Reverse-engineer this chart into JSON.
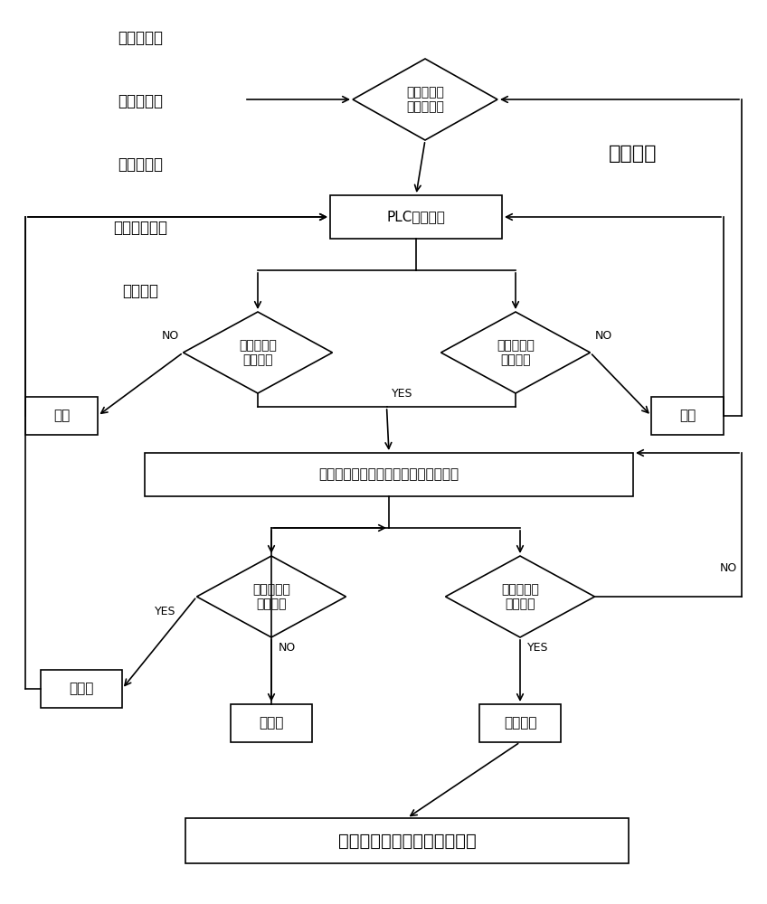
{
  "bg_color": "#ffffff",
  "line_color": "#000000",
  "text_color": "#000000",
  "font_size": 11,
  "font_size_small": 9,
  "font_size_large": 14,
  "multi_loop_label": "多次循环",
  "left_list": [
    "初始氨氮値",
    "结束氨氮値",
    "溶解氧范围",
    "数据采集频率",
    "循环次数"
  ],
  "ctrl_label": "控制单元给\n出运行参数",
  "plc_label": "PLC执行机构",
  "do1_label": "溶解氧范围\n是否渋足",
  "nh1_label": "初始氨氮値\n是否渋足",
  "aerate_label": "曝气",
  "dosing_label": "加药",
  "nitrify_label": "硝化速率测试并连续采集记录氨氮数据",
  "do2_label": "溶解氧范围\n是否渋足",
  "nh2_label": "结束氨氮値\n是否渋足",
  "stop_aerate_label": "停曝气",
  "open_aerate_label": "开曝气",
  "reaction_end_label": "反应结束",
  "report_label": "分析硝化速率数据并给出报告"
}
